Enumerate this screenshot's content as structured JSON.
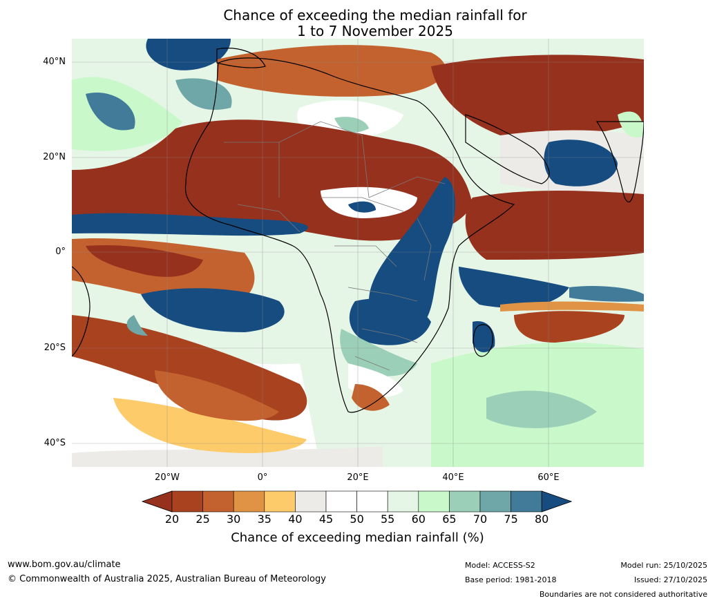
{
  "title": {
    "line1": "Chance of exceeding the median rainfall for",
    "line2": "1 to 7 November 2025"
  },
  "map": {
    "region": "Africa",
    "lat_range": [
      -45,
      45
    ],
    "lon_range": [
      -40,
      80
    ],
    "lat_labels": [
      "40°N",
      "20°N",
      "0°",
      "20°S",
      "40°S"
    ],
    "lat_values": [
      40,
      20,
      0,
      -20,
      -40
    ],
    "lon_labels": [
      "20°W",
      "0°",
      "20°E",
      "40°E",
      "60°E"
    ],
    "lon_values": [
      -20,
      0,
      20,
      40,
      60
    ]
  },
  "colorbar": {
    "ticks": [
      "20",
      "25",
      "30",
      "35",
      "40",
      "45",
      "50",
      "55",
      "60",
      "65",
      "70",
      "75",
      "80"
    ],
    "colors": [
      "#96311e",
      "#a8421f",
      "#c4622f",
      "#e09345",
      "#fdcb6a",
      "#ecebe7",
      "#ffffff",
      "#ffffff",
      "#e6f6e6",
      "#c9f8cb",
      "#9bcfb7",
      "#6fa7a8",
      "#417b99",
      "#164c80"
    ],
    "label": "Chance of exceeding median rainfall (%)"
  },
  "footer": {
    "website": "www.bom.gov.au/climate",
    "copyright": "© Commonwealth of Australia 2025, Australian Bureau of Meteorology",
    "model": "Model: ACCESS-S2",
    "base_period": "Base period: 1981-2018",
    "model_run": "Model run: 25/10/2025",
    "issued": "Issued: 27/10/2025",
    "boundaries": "Boundaries are not considered authoritative"
  }
}
